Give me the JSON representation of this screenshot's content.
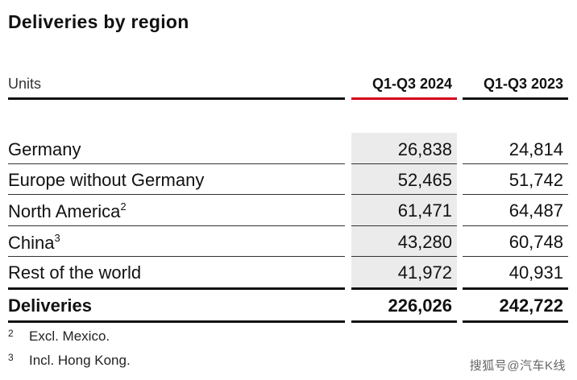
{
  "title": "Deliveries by region",
  "header": {
    "units": "Units",
    "col_2024": "Q1-Q3 2024",
    "col_2023": "Q1-Q3 2023"
  },
  "rows": [
    {
      "label": "Germany",
      "sup": "",
      "v2024": "26,838",
      "v2023": "24,814"
    },
    {
      "label": "Europe without Germany",
      "sup": "",
      "v2024": "52,465",
      "v2023": "51,742"
    },
    {
      "label": "North America",
      "sup": "2",
      "v2024": "61,471",
      "v2023": "64,487"
    },
    {
      "label": "China",
      "sup": "3",
      "v2024": "43,280",
      "v2023": "60,748"
    },
    {
      "label": "Rest of the world",
      "sup": "",
      "v2024": "41,972",
      "v2023": "40,931"
    }
  ],
  "total": {
    "label": "Deliveries",
    "v2024": "226,026",
    "v2023": "242,722"
  },
  "footnotes": [
    {
      "num": "2",
      "text": "Excl. Mexico."
    },
    {
      "num": "3",
      "text": "Incl. Hong Kong."
    }
  ],
  "watermark": "搜狐号@汽车K线",
  "colors": {
    "accent": "#d5001c",
    "shade": "#ebebeb"
  }
}
